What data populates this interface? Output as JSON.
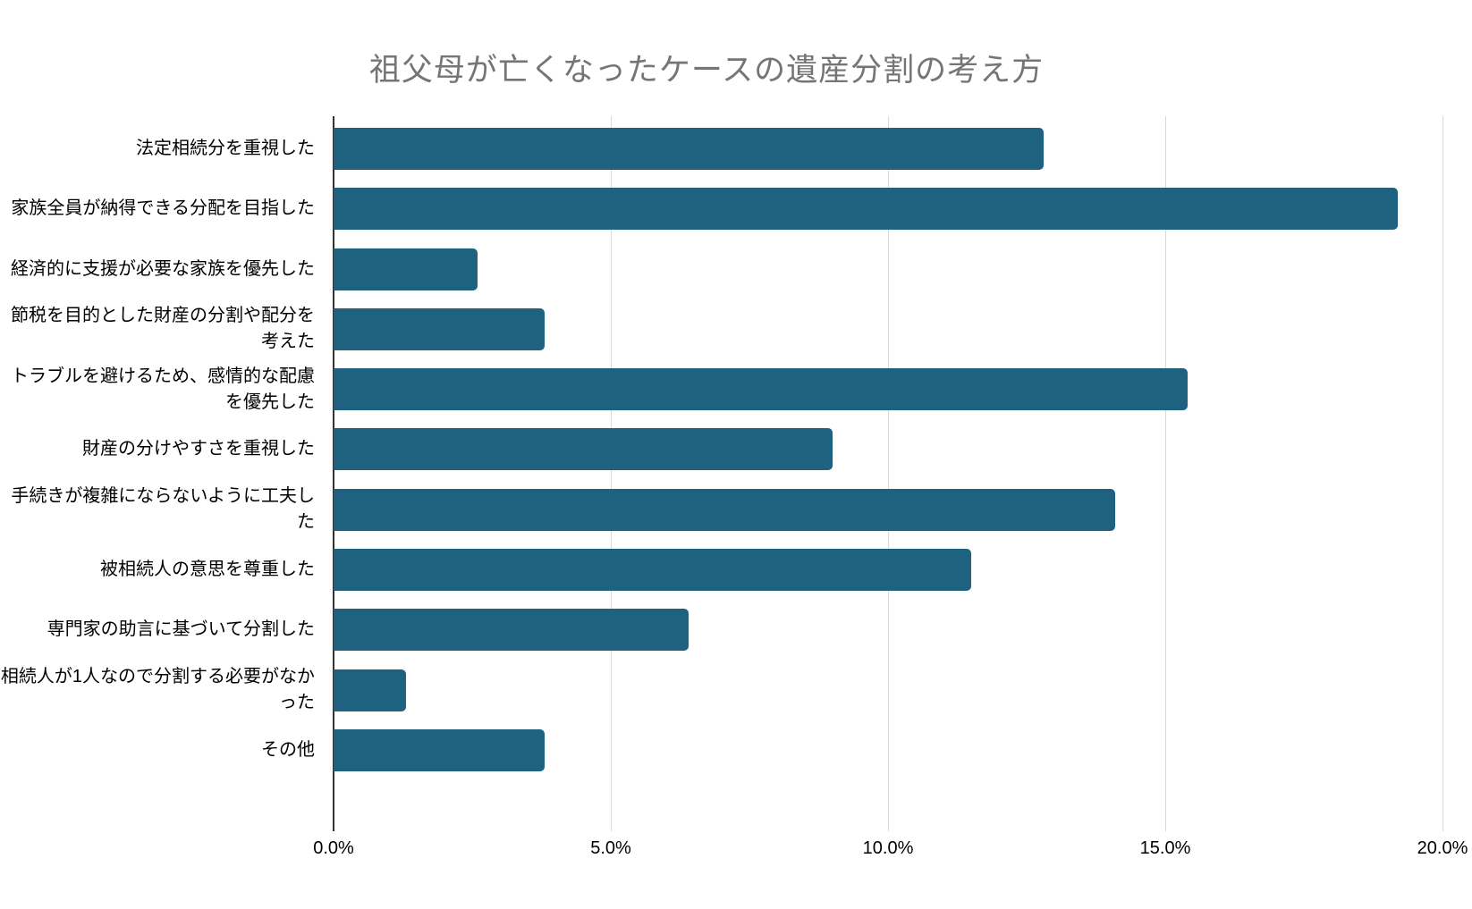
{
  "colors": {
    "bar": "#1e6280",
    "title": "#757575",
    "gridline": "#d9d9d9",
    "axis_line": "#333333",
    "text": "#000000"
  },
  "chart_data": {
    "type": "bar",
    "orientation": "horizontal",
    "title": "祖父母が亡くなったケースの遺産分割の考え方",
    "categories": [
      "法定相続分を重視した",
      "家族全員が納得できる分配を目指した",
      "経済的に支援が必要な家族を優先した",
      "節税を目的とした財産の分割や配分を考えた",
      "トラブルを避けるため、感情的な配慮を優先した",
      "財産の分けやすさを重視した",
      "手続きが複雑にならないように工夫した",
      "被相続人の意思を尊重した",
      "専門家の助言に基づいて分割した",
      "相続人が1人なので分割する必要がなかった",
      "その他"
    ],
    "values": [
      12.8,
      19.2,
      2.6,
      3.8,
      15.4,
      9.0,
      14.1,
      11.5,
      6.4,
      1.3,
      3.8
    ],
    "unit": "%",
    "xlabel": "",
    "ylabel": "",
    "xlim": [
      0,
      20
    ],
    "x_tick_values": [
      0,
      5,
      10,
      15,
      20
    ],
    "x_tick_labels": [
      "0.0%",
      "5.0%",
      "10.0%",
      "15.0%",
      "20.0%"
    ],
    "grid": true,
    "legend": "none"
  }
}
